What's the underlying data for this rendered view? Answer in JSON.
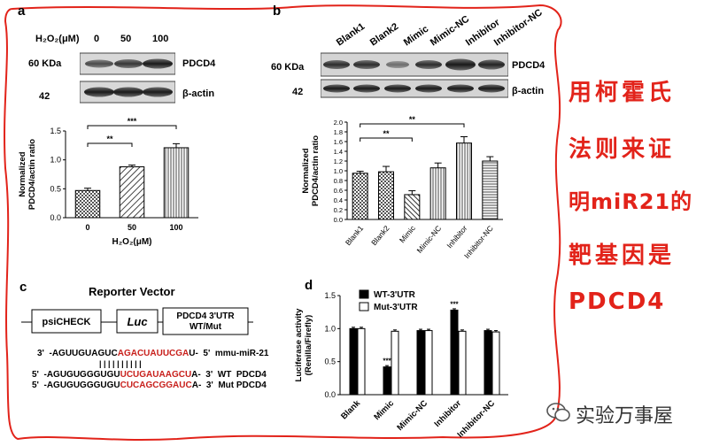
{
  "panel_a": {
    "label": "a",
    "h2o2_header": "H₂O₂(μM)",
    "doses": [
      "0",
      "50",
      "100"
    ],
    "blot_mw_top": "60 KDa",
    "blot_mw_bottom": "42",
    "blot_name_top": "PDCD4",
    "blot_name_bottom": "β-actin"
  },
  "panel_b": {
    "label": "b",
    "lanes": [
      "Blank1",
      "Blank2",
      "Mimic",
      "Mimic-NC",
      "Inhibitor",
      "Inhibitor-NC"
    ],
    "blot_mw_top": "60 KDa",
    "blot_mw_bottom": "42",
    "blot_name_top": "PDCD4",
    "blot_name_bottom": "β-actin"
  },
  "panel_c": {
    "label": "c",
    "title": "Reporter Vector",
    "box1": "psiCHECK",
    "box2": "Luc",
    "box3_line1": "PDCD4 3'UTR",
    "box3_line2": "WT/Mut",
    "seq1_pre": "3'  -AGUUGUAGUC",
    "seq1_red": "AGACUAUUCGA",
    "seq1_post": "U-  5'  mmu-miR-21",
    "bonds": "| | | | | | | | | |",
    "seq2_pre": "5'  -AGUGUGGGUGU",
    "seq2_red": "UCUGAUAAGCU",
    "seq2_post": "A-  3'  WT  PDCD4",
    "seq3_pre": "5'  -AGUGUGGGUGU",
    "seq3_red": "CUCAGCGGAUC",
    "seq3_post": "A-  3'  Mut PDCD4"
  },
  "panel_d": {
    "label": "d"
  },
  "side_note": [
    "用柯霍氏",
    "法则来证",
    "明miR21的",
    "靶基因是",
    "PDCD4"
  ],
  "watermark": "实验万事屋",
  "colors": {
    "frame": "#e2231a",
    "sequence_highlight": "#c8201c"
  },
  "chart_data": [
    {
      "type": "bar",
      "panel": "a",
      "categories": [
        "0",
        "50",
        "100"
      ],
      "values": [
        0.47,
        0.88,
        1.21
      ],
      "errors": [
        0.04,
        0.03,
        0.07
      ],
      "xlabel": "H₂O₂(μM)",
      "ylabel": "Normalized PDCD4/actin ratio",
      "ylim": [
        0,
        1.5
      ],
      "yticks": [
        "0.0",
        "0.5",
        "1.0",
        "1.5"
      ],
      "significance": [
        {
          "from": "0",
          "to": "50",
          "label": "**"
        },
        {
          "from": "0",
          "to": "100",
          "label": "***"
        }
      ]
    },
    {
      "type": "bar",
      "panel": "b",
      "categories": [
        "Blank1",
        "Blank2",
        "Mimic",
        "Mimic-NC",
        "Inhibitor",
        "Inhibitor-NC"
      ],
      "values": [
        0.95,
        0.98,
        0.51,
        1.06,
        1.57,
        1.2
      ],
      "errors": [
        0.04,
        0.11,
        0.08,
        0.1,
        0.13,
        0.09
      ],
      "ylabel": "Normalized PDCD4/actin ratio",
      "ylim": [
        0,
        2.0
      ],
      "yticks": [
        "0.0",
        "0.2",
        "0.4",
        "0.6",
        "0.8",
        "1.0",
        "1.2",
        "1.4",
        "1.6",
        "1.8",
        "2.0"
      ],
      "significance": [
        {
          "from": "Blank1",
          "to": "Mimic",
          "label": "**"
        },
        {
          "from": "Blank1",
          "to": "Inhibitor",
          "label": "**"
        }
      ]
    },
    {
      "type": "bar",
      "panel": "d",
      "categories": [
        "Blank",
        "Mimic",
        "Mimic-NC",
        "Inhibitor",
        "Inhibitor-NC"
      ],
      "series": [
        {
          "name": "WT-3'UTR",
          "values": [
            1.0,
            0.42,
            0.97,
            1.28,
            0.97
          ]
        },
        {
          "name": "Mut-3'UTR",
          "values": [
            1.0,
            0.96,
            0.97,
            0.96,
            0.95
          ]
        }
      ],
      "ylabel": "Luciferase activity (Renilla/Firefly)",
      "ylim": [
        0,
        1.5
      ],
      "yticks": [
        "0.0",
        "0.5",
        "1.0",
        "1.5"
      ],
      "legend": "top-left",
      "significance": [
        {
          "category": "Mimic",
          "label": "***"
        },
        {
          "category": "Inhibitor",
          "label": "***"
        }
      ]
    }
  ]
}
